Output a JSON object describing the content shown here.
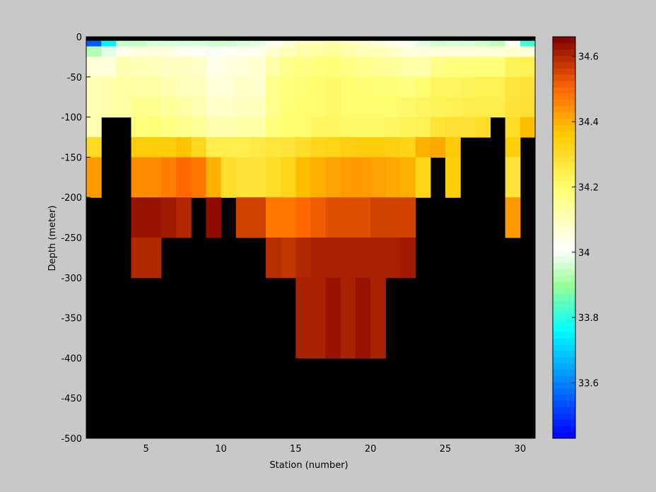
{
  "chart_data": {
    "type": "heatmap",
    "title": "",
    "xlabel": "Station (number)",
    "ylabel": "Depth (meter)",
    "x_ticks": [
      5,
      10,
      15,
      20,
      25,
      30
    ],
    "y_ticks": [
      0,
      -50,
      -100,
      -150,
      -200,
      -250,
      -300,
      -350,
      -400,
      -450,
      -500
    ],
    "x_range": [
      1,
      31
    ],
    "y_range": [
      -500,
      0
    ],
    "colorbar": {
      "range": [
        33.43,
        34.66
      ],
      "ticks": [
        33.6,
        33.8,
        34,
        34.2,
        34.4,
        34.6
      ],
      "colormap": "jet-hot"
    },
    "no_data_color": "#000000",
    "background_color": "#c8c8c8",
    "layers": [
      {
        "depth_top": 0,
        "depth_bottom": -5,
        "values": [
          null,
          null,
          null,
          null,
          null,
          null,
          null,
          null,
          null,
          null,
          null,
          null,
          null,
          null,
          null,
          null,
          null,
          null,
          null,
          null,
          null,
          null,
          null,
          null,
          null,
          null,
          null,
          null,
          null,
          null
        ]
      },
      {
        "depth_top": -5,
        "depth_bottom": -12,
        "values": [
          33.55,
          33.75,
          33.95,
          33.95,
          33.97,
          33.97,
          33.97,
          33.97,
          33.96,
          33.96,
          33.97,
          33.98,
          34.0,
          34.05,
          34.1,
          34.1,
          34.12,
          34.1,
          34.08,
          34.05,
          34.03,
          34.0,
          33.98,
          33.96,
          33.97,
          33.97,
          33.96,
          33.94,
          34.03,
          33.82
        ]
      },
      {
        "depth_top": -12,
        "depth_bottom": -25,
        "values": [
          33.93,
          33.98,
          34.03,
          34.05,
          34.05,
          34.05,
          34.03,
          34.02,
          34.0,
          34.02,
          34.03,
          34.03,
          34.07,
          34.1,
          34.12,
          34.13,
          34.14,
          34.12,
          34.1,
          34.1,
          34.08,
          34.06,
          34.05,
          34.05,
          34.05,
          34.05,
          34.06,
          34.06,
          34.07,
          34.06
        ]
      },
      {
        "depth_top": -25,
        "depth_bottom": -50,
        "values": [
          34.06,
          34.06,
          34.11,
          34.1,
          34.1,
          34.09,
          34.09,
          34.08,
          34.04,
          34.05,
          34.06,
          34.07,
          34.13,
          34.16,
          34.17,
          34.18,
          34.19,
          34.17,
          34.16,
          34.15,
          34.14,
          34.13,
          34.12,
          34.17,
          34.18,
          34.18,
          34.19,
          34.19,
          34.23,
          34.24
        ]
      },
      {
        "depth_top": -50,
        "depth_bottom": -75,
        "values": [
          34.11,
          34.12,
          34.13,
          34.13,
          34.13,
          34.11,
          34.1,
          34.09,
          34.06,
          34.06,
          34.08,
          34.07,
          34.16,
          34.18,
          34.19,
          34.2,
          34.21,
          34.2,
          34.19,
          34.19,
          34.19,
          34.18,
          34.2,
          34.22,
          34.22,
          34.23,
          34.24,
          34.24,
          34.27,
          34.28
        ]
      },
      {
        "depth_top": -75,
        "depth_bottom": -100,
        "values": [
          34.11,
          34.12,
          34.13,
          34.16,
          34.16,
          34.14,
          34.13,
          34.11,
          34.08,
          34.08,
          34.09,
          34.09,
          34.16,
          34.19,
          34.2,
          34.2,
          34.21,
          34.2,
          34.2,
          34.2,
          34.2,
          34.21,
          34.22,
          34.23,
          34.24,
          34.25,
          34.25,
          34.25,
          34.28,
          34.29
        ]
      },
      {
        "depth_top": -100,
        "depth_bottom": -125,
        "values": [
          34.11,
          null,
          null,
          34.18,
          34.19,
          34.17,
          34.16,
          34.14,
          34.12,
          34.12,
          34.13,
          34.13,
          34.18,
          34.2,
          34.2,
          34.22,
          34.22,
          34.21,
          34.21,
          34.21,
          34.22,
          34.23,
          34.24,
          34.28,
          34.29,
          34.29,
          34.3,
          null,
          34.3,
          34.38
        ]
      },
      {
        "depth_top": -125,
        "depth_bottom": -150,
        "values": [
          34.31,
          null,
          null,
          34.35,
          34.35,
          34.35,
          34.37,
          34.32,
          34.25,
          34.25,
          34.25,
          34.26,
          34.27,
          34.28,
          34.3,
          34.32,
          34.33,
          34.34,
          34.35,
          34.35,
          34.34,
          34.33,
          34.4,
          34.41,
          34.36,
          null,
          null,
          null,
          34.35,
          null
        ]
      },
      {
        "depth_top": -150,
        "depth_bottom": -200,
        "values": [
          34.43,
          null,
          null,
          34.45,
          34.45,
          34.47,
          34.5,
          34.48,
          34.4,
          34.3,
          34.28,
          34.28,
          34.3,
          34.33,
          34.38,
          34.4,
          34.42,
          34.43,
          34.43,
          34.42,
          34.41,
          34.4,
          34.33,
          null,
          34.35,
          null,
          null,
          null,
          34.28,
          null
        ]
      },
      {
        "depth_top": -200,
        "depth_bottom": -250,
        "values": [
          null,
          null,
          null,
          34.63,
          34.63,
          34.62,
          34.6,
          null,
          34.64,
          null,
          34.56,
          34.56,
          34.48,
          34.48,
          34.5,
          34.52,
          34.54,
          34.54,
          34.54,
          34.56,
          34.56,
          34.56,
          null,
          null,
          null,
          null,
          null,
          null,
          34.43,
          null
        ]
      },
      {
        "depth_top": -250,
        "depth_bottom": -300,
        "values": [
          null,
          null,
          null,
          34.6,
          34.6,
          null,
          null,
          null,
          null,
          null,
          null,
          null,
          34.59,
          34.58,
          34.6,
          34.61,
          34.61,
          34.61,
          34.61,
          34.61,
          34.61,
          34.62,
          null,
          null,
          null,
          null,
          null,
          null,
          null,
          null
        ]
      },
      {
        "depth_top": -300,
        "depth_bottom": -400,
        "values": [
          null,
          null,
          null,
          null,
          null,
          null,
          null,
          null,
          null,
          null,
          null,
          null,
          null,
          null,
          34.61,
          34.61,
          34.63,
          34.61,
          34.63,
          34.61,
          null,
          null,
          null,
          null,
          null,
          null,
          null,
          null,
          null,
          null
        ]
      }
    ]
  }
}
